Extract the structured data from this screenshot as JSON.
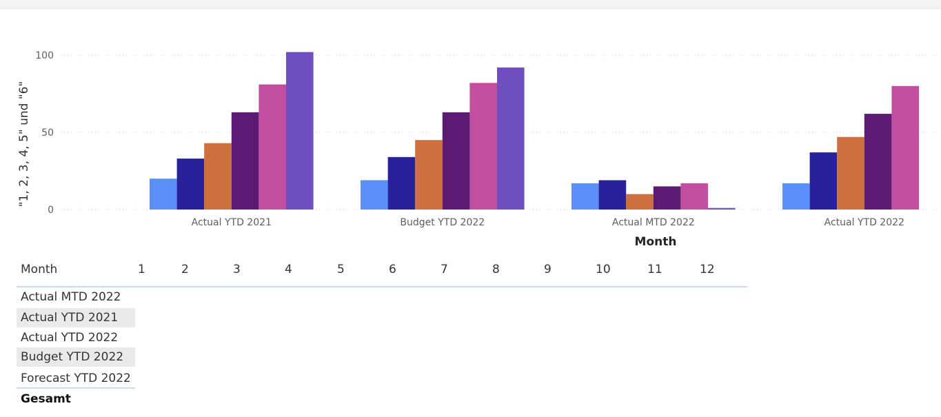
{
  "chart_data": {
    "type": "bar",
    "title": "",
    "xlabel": "Month",
    "ylabel": "\"1, 2, 3, 4, 5\" und \"6\"",
    "ylim": [
      0,
      105
    ],
    "yticks": [
      0,
      50,
      100
    ],
    "grid": true,
    "categories": [
      "Actual YTD 2021",
      "Budget YTD 2022",
      "Actual MTD 2022",
      "Actual YTD 2022"
    ],
    "series": [
      {
        "color": "#5b8ff9",
        "values": [
          20,
          19,
          17,
          17
        ]
      },
      {
        "color": "#27229a",
        "values": [
          33,
          34,
          19,
          37
        ]
      },
      {
        "color": "#cd6f3f",
        "values": [
          43,
          45,
          10,
          47
        ]
      },
      {
        "color": "#5c1a73",
        "values": [
          63,
          63,
          15,
          62
        ]
      },
      {
        "color": "#c34d9e",
        "values": [
          81,
          82,
          17,
          80
        ]
      },
      {
        "color": "#6f4fbf",
        "values": [
          102,
          92,
          1,
          null
        ]
      }
    ]
  },
  "matrix": {
    "header_label": "Month",
    "columns": [
      "1",
      "2",
      "3",
      "4",
      "5",
      "6",
      "7",
      "8",
      "9",
      "10",
      "11",
      "12"
    ],
    "rows": [
      "Actual MTD 2022",
      "Actual YTD 2021",
      "Actual YTD 2022",
      "Budget YTD 2022",
      "Forecast YTD 2022"
    ],
    "total_label": "Gesamt"
  }
}
